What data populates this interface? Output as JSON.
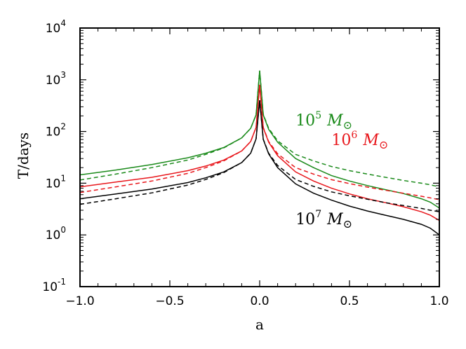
{
  "chart_data": {
    "type": "line",
    "title": "",
    "xlabel": "a",
    "ylabel": "T/days",
    "xlim": [
      -1.0,
      1.0
    ],
    "ylim": [
      0.1,
      10000
    ],
    "yscale": "log",
    "x_ticks": [
      {
        "value": -1.0,
        "label": "−1.0"
      },
      {
        "value": -0.5,
        "label": "−0.5"
      },
      {
        "value": 0.0,
        "label": "0.0"
      },
      {
        "value": 0.5,
        "label": "0.5"
      },
      {
        "value": 1.0,
        "label": "1.0"
      }
    ],
    "y_ticks": [
      {
        "value": 0.1,
        "base": "10",
        "exp": "-1"
      },
      {
        "value": 1,
        "base": "10",
        "exp": "0"
      },
      {
        "value": 10,
        "base": "10",
        "exp": "1"
      },
      {
        "value": 100,
        "base": "10",
        "exp": "2"
      },
      {
        "value": 1000,
        "base": "10",
        "exp": "3"
      },
      {
        "value": 10000,
        "base": "10",
        "exp": "4"
      }
    ],
    "grid": false,
    "series": [
      {
        "name": "10^5 M_sun (solid)",
        "mass_label": "5",
        "color": "#1a8a1a",
        "dashed": false,
        "x": [
          -1.0,
          -0.8,
          -0.6,
          -0.4,
          -0.3,
          -0.2,
          -0.1,
          -0.05,
          -0.02,
          0.0,
          0.02,
          0.05,
          0.1,
          0.2,
          0.3,
          0.4,
          0.5,
          0.6,
          0.7,
          0.8,
          0.9,
          0.95,
          1.0
        ],
        "y": [
          14.5,
          18,
          23,
          31,
          38,
          49,
          75,
          115,
          210,
          1500,
          210,
          110,
          62,
          30,
          20,
          14,
          11,
          9,
          7.5,
          6.3,
          5.0,
          4.3,
          3.3
        ]
      },
      {
        "name": "10^5 M_sun (dashed)",
        "mass_label": "5",
        "color": "#1a8a1a",
        "dashed": true,
        "x": [
          -1.0,
          -0.8,
          -0.6,
          -0.4,
          -0.3,
          -0.2,
          -0.1,
          -0.05,
          -0.02,
          0.0,
          0.02,
          0.05,
          0.1,
          0.2,
          0.3,
          0.4,
          0.5,
          0.6,
          0.7,
          0.8,
          0.9,
          0.95,
          1.0
        ],
        "y": [
          11.5,
          15,
          20,
          28,
          36,
          48,
          75,
          115,
          210,
          1500,
          215,
          115,
          66,
          36,
          27,
          21,
          17.5,
          15,
          13,
          11.3,
          10,
          9.3,
          8.5
        ]
      },
      {
        "name": "10^6 M_sun (solid)",
        "mass_label": "6",
        "color": "#e8161b",
        "dashed": false,
        "x": [
          -1.0,
          -0.8,
          -0.6,
          -0.4,
          -0.3,
          -0.2,
          -0.1,
          -0.05,
          -0.02,
          0.0,
          0.02,
          0.05,
          0.1,
          0.2,
          0.3,
          0.4,
          0.5,
          0.6,
          0.7,
          0.8,
          0.9,
          0.95,
          1.0
        ],
        "y": [
          8.5,
          10.5,
          13,
          17.5,
          21.5,
          28,
          42,
          64,
          120,
          800,
          118,
          62,
          34,
          16.5,
          11,
          8,
          6.2,
          5,
          4.2,
          3.5,
          2.8,
          2.4,
          1.9
        ]
      },
      {
        "name": "10^6 M_sun (dashed)",
        "mass_label": "6",
        "color": "#e8161b",
        "dashed": true,
        "x": [
          -1.0,
          -0.8,
          -0.6,
          -0.4,
          -0.3,
          -0.2,
          -0.1,
          -0.05,
          -0.02,
          0.0,
          0.02,
          0.05,
          0.1,
          0.2,
          0.3,
          0.4,
          0.5,
          0.6,
          0.7,
          0.8,
          0.9,
          0.95,
          1.0
        ],
        "y": [
          6.6,
          8.5,
          11,
          15.5,
          20,
          27,
          42,
          64,
          120,
          800,
          120,
          64,
          37,
          20,
          15,
          11.7,
          9.8,
          8.4,
          7.3,
          6.4,
          5.6,
          5.2,
          4.8
        ]
      },
      {
        "name": "10^7 M_sun (solid)",
        "mass_label": "7",
        "color": "#000000",
        "dashed": false,
        "x": [
          -1.0,
          -0.8,
          -0.6,
          -0.4,
          -0.3,
          -0.2,
          -0.1,
          -0.05,
          -0.02,
          0.0,
          0.02,
          0.05,
          0.1,
          0.2,
          0.3,
          0.4,
          0.5,
          0.6,
          0.7,
          0.8,
          0.9,
          0.95,
          1.0
        ],
        "y": [
          5.0,
          6.2,
          7.7,
          10.3,
          12.7,
          16.5,
          25,
          38,
          72,
          400,
          70,
          37,
          20,
          9.7,
          6.4,
          4.7,
          3.6,
          2.9,
          2.4,
          2.0,
          1.6,
          1.35,
          1.0
        ]
      },
      {
        "name": "10^7 M_sun (dashed)",
        "mass_label": "7",
        "color": "#000000",
        "dashed": true,
        "x": [
          -1.0,
          -0.8,
          -0.6,
          -0.4,
          -0.3,
          -0.2,
          -0.1,
          -0.05,
          -0.02,
          0.0,
          0.02,
          0.05,
          0.1,
          0.2,
          0.3,
          0.4,
          0.5,
          0.6,
          0.7,
          0.8,
          0.9,
          0.95,
          1.0
        ],
        "y": [
          3.9,
          5.0,
          6.5,
          9.2,
          11.8,
          16,
          25,
          38,
          72,
          400,
          71,
          38,
          22,
          11.8,
          8.7,
          6.8,
          5.7,
          4.9,
          4.2,
          3.7,
          3.25,
          3.0,
          2.8
        ]
      }
    ],
    "annotations": [
      {
        "base": "10",
        "exp": "5",
        "symbol": "M",
        "color": "#1a8a1a",
        "x": 0.2,
        "y": 130
      },
      {
        "base": "10",
        "exp": "6",
        "symbol": "M",
        "color": "#e8161b",
        "x": 0.4,
        "y": 55
      },
      {
        "base": "10",
        "exp": "7",
        "symbol": "M",
        "color": "#000000",
        "x": 0.2,
        "y": 1.6
      }
    ],
    "sun_symbol": "⊙"
  }
}
